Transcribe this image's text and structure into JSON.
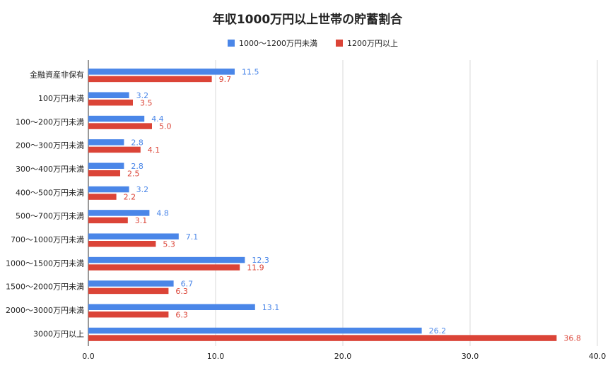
{
  "chart_data": {
    "type": "hbar",
    "title": "年収1000万円以上世帯の貯蓄割合",
    "categories": [
      "金融資産非保有",
      "100万円未満",
      "100〜200万円未満",
      "200〜300万円未満",
      "300〜400万円未満",
      "400〜500万円未満",
      "500〜700万円未満",
      "700〜1000万円未満",
      "1000〜1500万円未満",
      "1500〜2000万円未満",
      "2000〜3000万円未満",
      "3000万円以上"
    ],
    "series": [
      {
        "name": "1000〜1200万円未満",
        "color": "#4a86e8",
        "values": [
          11.5,
          3.2,
          4.4,
          2.8,
          2.8,
          3.2,
          4.8,
          7.1,
          12.3,
          6.7,
          13.1,
          26.2
        ],
        "value_labels": [
          "11.5",
          "3.2",
          "4.4",
          "2.8",
          "2.8",
          "3.2",
          "4.8",
          "7.1",
          "12.3",
          "6.7",
          "13.1",
          "26.2"
        ]
      },
      {
        "name": "1200万円以上",
        "color": "#db4437",
        "values": [
          9.7,
          3.5,
          5.0,
          4.1,
          2.5,
          2.2,
          3.1,
          5.3,
          11.9,
          6.3,
          6.3,
          36.8
        ],
        "value_labels": [
          "9.7",
          "3.5",
          "5.0",
          "4.1",
          "2.5",
          "2.2",
          "3.1",
          "5.3",
          "11.9",
          "6.3",
          "6.3",
          "36.8"
        ]
      }
    ],
    "xlim": [
      0,
      40
    ],
    "xticks": [
      {
        "value": 0,
        "label": "0.0"
      },
      {
        "value": 10,
        "label": "10.0"
      },
      {
        "value": 20,
        "label": "20.0"
      },
      {
        "value": 30,
        "label": "30.0"
      },
      {
        "value": 40,
        "label": "40.0"
      }
    ],
    "grid": true,
    "legend": "top"
  }
}
